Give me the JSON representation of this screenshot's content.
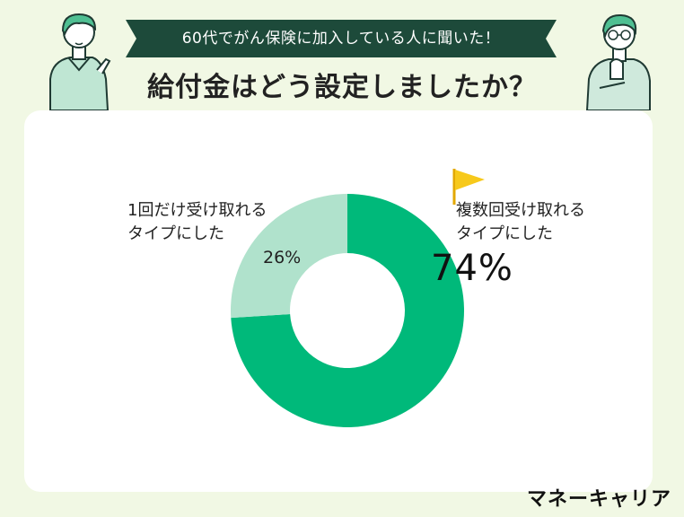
{
  "header": {
    "banner": "60代でがん保険に加入している人に聞いた！",
    "title": "給付金はどう設定しましたか？"
  },
  "chart_data": {
    "type": "pie",
    "title": "給付金はどう設定しましたか？",
    "slices": [
      {
        "label_line1": "複数回受け取れる",
        "label_line2": "タイプにした",
        "value": 74,
        "display": "74%",
        "color": "#00b97a"
      },
      {
        "label_line1": "1回だけ受け取れる",
        "label_line2": "タイプにした",
        "value": 26,
        "display": "26%",
        "color": "#b0e2cc"
      }
    ]
  },
  "colors": {
    "background": "#f1f8e4",
    "banner": "#1d4a3a",
    "card": "#ffffff",
    "flag": "#f7c91b"
  },
  "icons": [
    "flag-icon"
  ],
  "brand": "マネーキャリア"
}
